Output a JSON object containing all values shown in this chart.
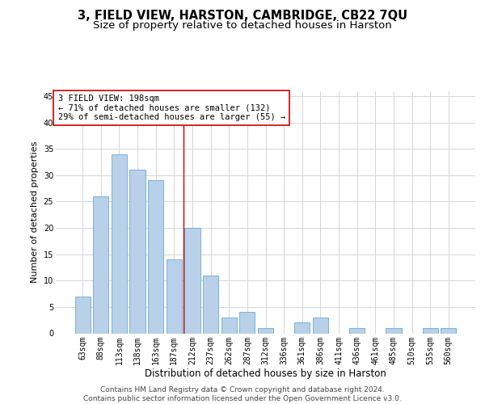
{
  "title": "3, FIELD VIEW, HARSTON, CAMBRIDGE, CB22 7QU",
  "subtitle": "Size of property relative to detached houses in Harston",
  "xlabel": "Distribution of detached houses by size in Harston",
  "ylabel": "Number of detached properties",
  "categories": [
    "63sqm",
    "88sqm",
    "113sqm",
    "138sqm",
    "163sqm",
    "187sqm",
    "212sqm",
    "237sqm",
    "262sqm",
    "287sqm",
    "312sqm",
    "336sqm",
    "361sqm",
    "386sqm",
    "411sqm",
    "436sqm",
    "461sqm",
    "485sqm",
    "510sqm",
    "535sqm",
    "560sqm"
  ],
  "values": [
    7,
    26,
    34,
    31,
    29,
    14,
    20,
    11,
    3,
    4,
    1,
    0,
    2,
    3,
    0,
    1,
    0,
    1,
    0,
    1,
    1
  ],
  "bar_color": "#b8d0e8",
  "bar_edge_color": "#6aaad4",
  "vline_x": 5.5,
  "vline_color": "#cc0000",
  "annotation_text": "3 FIELD VIEW: 198sqm\n← 71% of detached houses are smaller (132)\n29% of semi-detached houses are larger (55) →",
  "annotation_box_color": "#ffffff",
  "annotation_box_edge_color": "#cc0000",
  "ylim": [
    0,
    46
  ],
  "yticks": [
    0,
    5,
    10,
    15,
    20,
    25,
    30,
    35,
    40,
    45
  ],
  "footer_text": "Contains HM Land Registry data © Crown copyright and database right 2024.\nContains public sector information licensed under the Open Government Licence v3.0.",
  "background_color": "#ffffff",
  "grid_color": "#d0d0d0",
  "title_fontsize": 10.5,
  "subtitle_fontsize": 9.5,
  "xlabel_fontsize": 8.5,
  "ylabel_fontsize": 8,
  "tick_fontsize": 7,
  "annotation_fontsize": 7.5,
  "footer_fontsize": 6.5
}
